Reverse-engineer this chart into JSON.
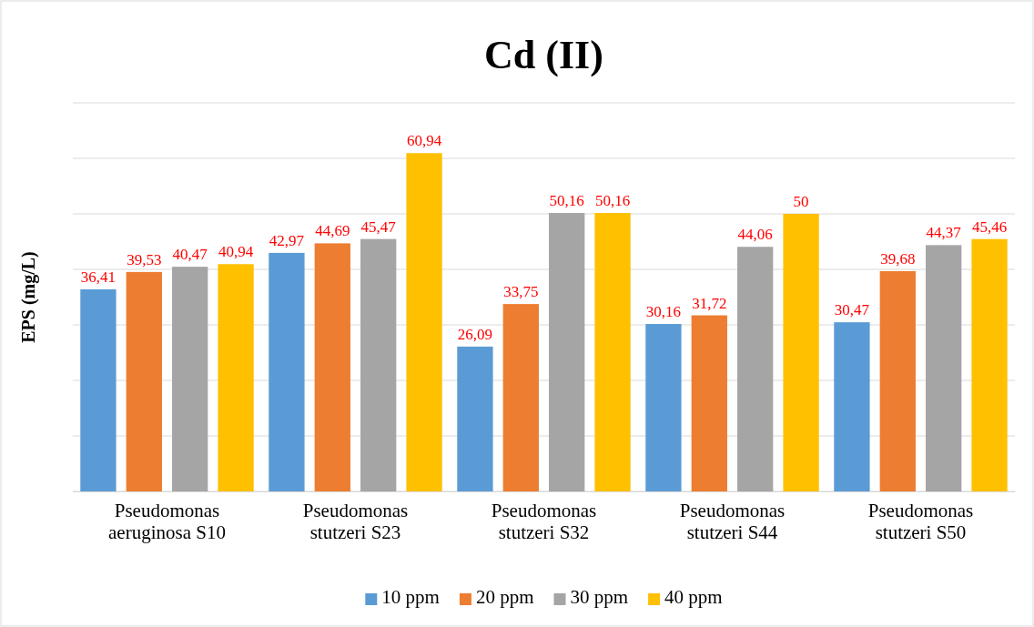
{
  "chart_data": {
    "type": "bar",
    "title": "Cd (II)",
    "ylabel": "EPS (mg/L)",
    "categories": [
      "Pseudomonas aeruginosa S10",
      "Pseudomonas stutzeri S23",
      "Pseudomonas stutzeri S32",
      "Pseudomonas stutzeri S44",
      "Pseudomonas stutzeri S50"
    ],
    "series": [
      {
        "name": "10 ppm",
        "color": "#5b9bd5",
        "values": [
          36.41,
          42.97,
          26.09,
          30.16,
          30.47
        ],
        "value_labels": [
          "36,41",
          "42,97",
          "26,09",
          "30,16",
          "30,47"
        ]
      },
      {
        "name": "20 ppm",
        "color": "#ed7d31",
        "values": [
          39.53,
          44.69,
          33.75,
          31.72,
          39.68
        ],
        "value_labels": [
          "39,53",
          "44,69",
          "33,75",
          "31,72",
          "39,68"
        ]
      },
      {
        "name": "30 ppm",
        "color": "#a5a5a5",
        "values": [
          40.47,
          45.47,
          50.16,
          44.06,
          44.37
        ],
        "value_labels": [
          "40,47",
          "45,47",
          "50,16",
          "44,06",
          "44,37"
        ]
      },
      {
        "name": "40 ppm",
        "color": "#ffc000",
        "values": [
          40.94,
          60.94,
          50.16,
          50,
          45.46
        ],
        "value_labels": [
          "40,94",
          "60,94",
          "50,16",
          "50",
          "45,46"
        ]
      }
    ],
    "ylim": [
      0,
      70
    ],
    "yticks": [
      {
        "value": 0,
        "label": null
      },
      {
        "value": 10,
        "label": null
      },
      {
        "value": 20,
        "label": null
      },
      {
        "value": 30,
        "label": null
      },
      {
        "value": 40,
        "label": null
      },
      {
        "value": 50,
        "label": null
      },
      {
        "value": 60,
        "label": null
      },
      {
        "value": 70,
        "label": null
      }
    ],
    "tick_labels": "x",
    "grid": "y",
    "legend": "bottom"
  }
}
